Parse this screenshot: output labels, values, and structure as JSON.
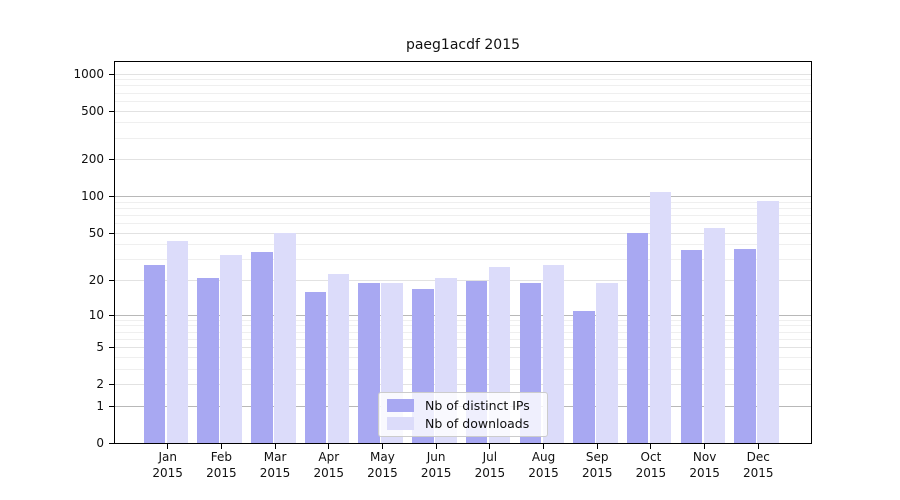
{
  "chart_data": {
    "type": "bar",
    "title": "paeg1acdf 2015",
    "categories": [
      "Jan",
      "Feb",
      "Mar",
      "Apr",
      "May",
      "Jun",
      "Jul",
      "Aug",
      "Sep",
      "Oct",
      "Nov",
      "Dec"
    ],
    "x_year": "2015",
    "series": [
      {
        "name": "Nb of distinct IPs",
        "color": "#a8a8f2",
        "values": [
          27,
          21,
          35,
          16,
          19,
          17,
          20,
          19,
          11,
          50,
          36,
          37
        ]
      },
      {
        "name": "Nb of downloads",
        "color": "#dcdcfa",
        "values": [
          43,
          33,
          50,
          23,
          19,
          21,
          26,
          27,
          19,
          110,
          55,
          93
        ]
      }
    ],
    "yscale": "log1p",
    "y_ticks": [
      0,
      1,
      2,
      5,
      10,
      20,
      50,
      100,
      200,
      500,
      1000
    ],
    "ylim": [
      0,
      1276
    ],
    "grid": {
      "major_values": [
        1,
        10,
        100
      ],
      "mid_values": [
        2,
        5,
        20,
        50,
        200,
        500,
        1000
      ],
      "minor_values": [
        3,
        4,
        6,
        7,
        8,
        9,
        30,
        40,
        60,
        70,
        80,
        90,
        300,
        400,
        600,
        700,
        800,
        900
      ],
      "major_color": "#b8b8b8",
      "mid_color": "#e2e2e2",
      "minor_color": "#efefef"
    },
    "legend": {
      "position": "lower center",
      "entries": [
        "Nb of distinct IPs",
        "Nb of downloads"
      ]
    }
  }
}
